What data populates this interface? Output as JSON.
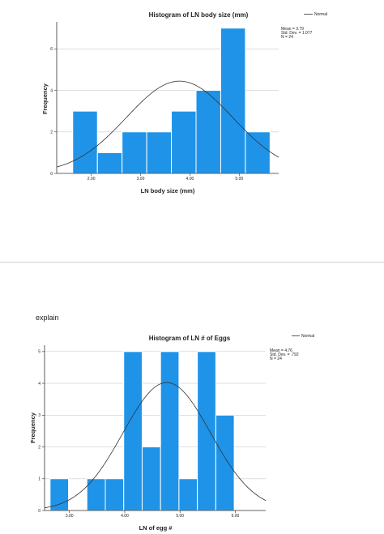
{
  "note": "explain",
  "colors": {
    "bar": "#1f93e8",
    "bar_edge": "#ffffff",
    "curve": "#333333",
    "axis": "#333333",
    "grid": "#cccccc"
  },
  "chart_data": [
    {
      "type": "bar",
      "title": "Histogram of LN body size (mm)",
      "xlabel": "LN body size (mm)",
      "ylabel": "Frequency",
      "xlim": [
        1.3,
        5.8
      ],
      "ylim": [
        0,
        7.3
      ],
      "bin_start": 1.625,
      "bin_width": 0.5,
      "values": [
        3,
        1,
        2,
        2,
        3,
        4,
        7,
        2
      ],
      "x_ticks": [
        2.0,
        3.0,
        4.0,
        5.0
      ],
      "x_tick_labels": [
        "2.00",
        "3.00",
        "4.00",
        "5.00"
      ],
      "y_ticks": [
        0,
        2,
        4,
        6
      ],
      "y_tick_labels": [
        "0",
        "2",
        "4",
        "6"
      ],
      "grid": true,
      "legend": {
        "position": "top-right",
        "label": "Normal"
      },
      "stats": [
        "Mean = 3.79",
        "Std. Dev. = 1.077",
        "N = 24"
      ],
      "normal": {
        "mean": 3.79,
        "sd": 1.077,
        "n": 24
      }
    },
    {
      "type": "bar",
      "title": "Histogram of LN # of Eggs",
      "xlabel": "LN of egg #",
      "ylabel": "Frequency",
      "xlim": [
        2.55,
        6.55
      ],
      "ylim": [
        0,
        5.2
      ],
      "bin_start": 2.65,
      "bin_width": 0.333,
      "values": [
        1,
        0,
        1,
        1,
        5,
        2,
        5,
        1,
        5,
        3
      ],
      "x_ticks": [
        3.0,
        4.0,
        5.0,
        6.0
      ],
      "x_tick_labels": [
        "3.00",
        "4.00",
        "5.00",
        "6.00"
      ],
      "y_ticks": [
        0,
        1,
        2,
        3,
        4,
        5
      ],
      "y_tick_labels": [
        "0",
        "1",
        "2",
        "3",
        "4",
        "5"
      ],
      "grid": true,
      "legend": {
        "position": "top-right",
        "label": "Normal"
      },
      "stats": [
        "Mean = 4.76",
        "Std. Dev. = .792",
        "N = 24"
      ],
      "normal": {
        "mean": 4.76,
        "sd": 0.792,
        "n": 24
      }
    }
  ]
}
